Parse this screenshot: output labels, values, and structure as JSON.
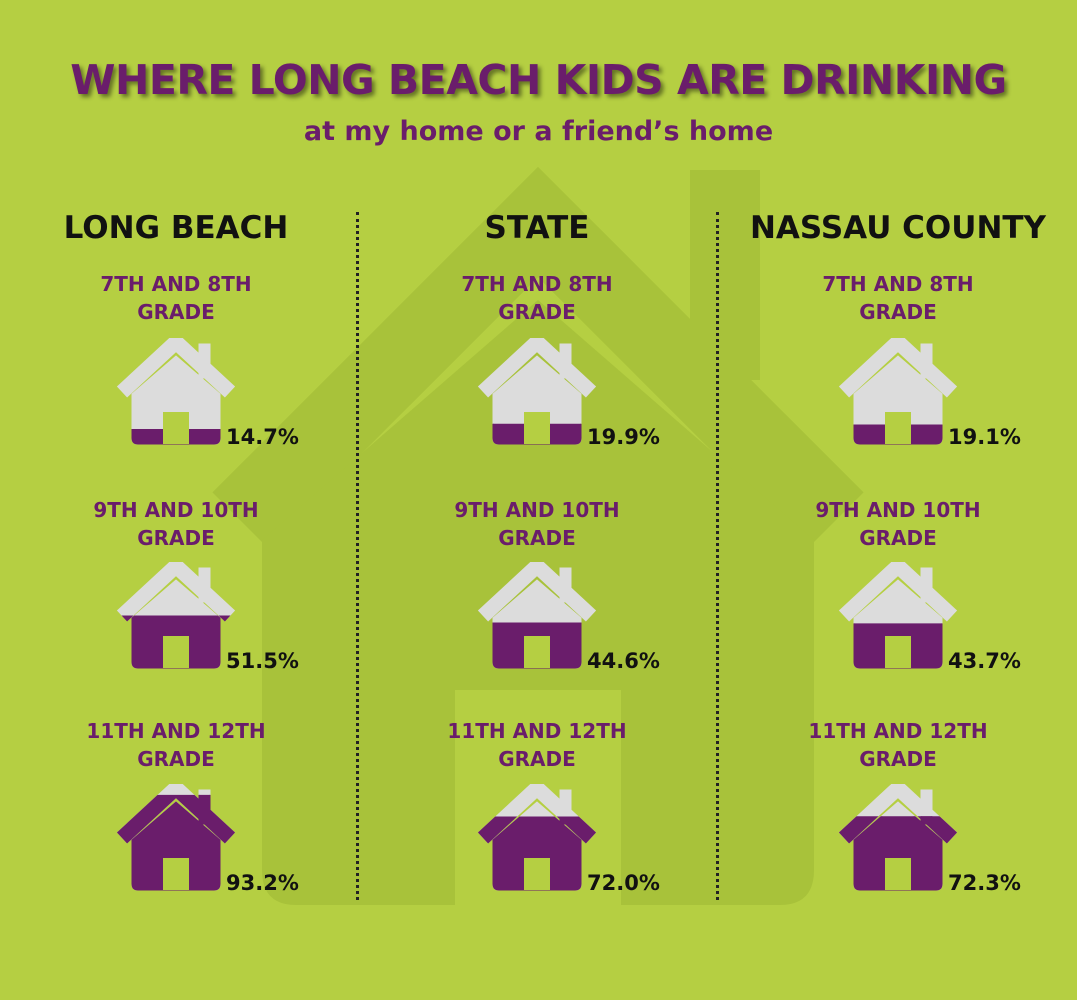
{
  "title": "WHERE LONG BEACH KIDS ARE DRINKING",
  "subtitle": "at my home or a friend’s home",
  "colors": {
    "background": "#b5cf42",
    "fill": "#6a1d6b",
    "empty": "#dcdcdc"
  },
  "columns": [
    {
      "name": "LONG BEACH"
    },
    {
      "name": "STATE"
    },
    {
      "name": "NASSAU COUNTY"
    }
  ],
  "grades": [
    {
      "line1": "7TH AND 8TH",
      "line2": "GRADE"
    },
    {
      "line1": "9TH AND 10TH",
      "line2": "GRADE"
    },
    {
      "line1": "11TH AND 12TH",
      "line2": "GRADE"
    }
  ],
  "chart_data": {
    "type": "table",
    "columns": [
      "LONG BEACH",
      "STATE",
      "NASSAU COUNTY"
    ],
    "rows": [
      "7TH AND 8TH GRADE",
      "9TH AND 10TH GRADE",
      "11TH AND 12TH GRADE"
    ],
    "values": [
      [
        14.7,
        19.9,
        19.1
      ],
      [
        51.5,
        44.6,
        43.7
      ],
      [
        93.2,
        72.0,
        72.3
      ]
    ],
    "labels": [
      [
        "14.7%",
        "19.9%",
        "19.1%"
      ],
      [
        "51.5%",
        "44.6%",
        "43.7%"
      ],
      [
        "93.2%",
        "72.0%",
        "72.3%"
      ]
    ]
  }
}
